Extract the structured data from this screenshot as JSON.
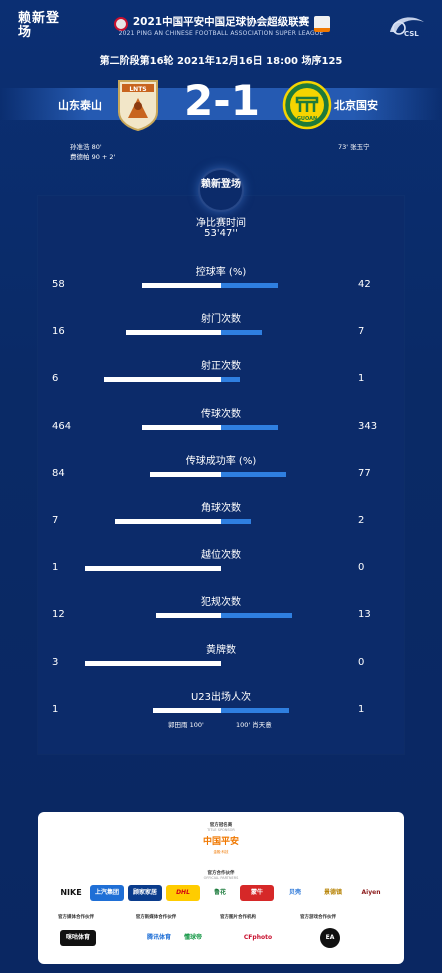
{
  "header": {
    "brand": "赖新登场",
    "league_title": "2021中国平安中国足球协会超级联赛",
    "league_subtitle": "2021 PING AN CHINESE FOOTBALL ASSOCIATION SUPER LEAGUE",
    "csl_logo_text": "CSL",
    "round_info": "第二阶段第16轮  2021年12月16日 18:00 场序125"
  },
  "match": {
    "home_team": "山东泰山",
    "away_team": "北京国安",
    "home_crest_text": "LNTS",
    "away_crest_text": "GUOAN",
    "score": "2-1",
    "home_goals": [
      {
        "player": "孙准浩",
        "minute": "80'"
      },
      {
        "player": "费德帕",
        "minute": "90 + 2'"
      }
    ],
    "away_goals": [
      {
        "minute": "73'",
        "player": "张玉宁"
      }
    ]
  },
  "stats": {
    "panel_logo": "赖新登场",
    "net_time_label": "净比赛时间",
    "net_time_value": "53'47''",
    "home_color": "#ffffff",
    "away_color": "#2f7fe0",
    "items": [
      {
        "label": "控球率 (%)",
        "home": "58",
        "away": "42",
        "home_ratio": 0.58,
        "away_ratio": 0.42
      },
      {
        "label": "射门次数",
        "home": "16",
        "away": "7",
        "home_ratio": 0.7,
        "away_ratio": 0.3
      },
      {
        "label": "射正次数",
        "home": "6",
        "away": "1",
        "home_ratio": 0.86,
        "away_ratio": 0.14
      },
      {
        "label": "传球次数",
        "home": "464",
        "away": "343",
        "home_ratio": 0.58,
        "away_ratio": 0.42
      },
      {
        "label": "传球成功率 (%)",
        "home": "84",
        "away": "77",
        "home_ratio": 0.52,
        "away_ratio": 0.48
      },
      {
        "label": "角球次数",
        "home": "7",
        "away": "2",
        "home_ratio": 0.78,
        "away_ratio": 0.22
      },
      {
        "label": "越位次数",
        "home": "1",
        "away": "0",
        "home_ratio": 1.0,
        "away_ratio": 0.0
      },
      {
        "label": "犯规次数",
        "home": "12",
        "away": "13",
        "home_ratio": 0.48,
        "away_ratio": 0.52
      },
      {
        "label": "黄牌数",
        "home": "3",
        "away": "0",
        "home_ratio": 1.0,
        "away_ratio": 0.0
      },
      {
        "label": "U23出场人次",
        "home": "1",
        "away": "1",
        "home_ratio": 0.5,
        "away_ratio": 0.5
      }
    ],
    "u23_home_note": "郭田雨  100'",
    "u23_away_note": "100'  肖天意"
  },
  "sponsors": {
    "title_sponsor_head": "官方冠名商",
    "title_sponsor_sub": "TITLE SPONSOR",
    "title_sponsor": "中国平安",
    "title_sponsor_tag": "金融·科技",
    "partners_head": "官方合作伙伴",
    "partners_sub": "OFFICIAL PARTNERS",
    "partners": [
      "NIKE",
      "上汽集团",
      "顾家家居",
      "DHL",
      "鲁花",
      "蒙牛",
      "贝壳",
      "景德镇",
      "Aiyen"
    ],
    "media_head": "官方媒体合作伙伴",
    "new_media_head": "官方新媒体合作伙伴",
    "photo_head": "官方图片合作机构",
    "game_head": "官方游戏合作伙伴",
    "media": [
      "咪咕体育",
      "腾讯体育",
      "懂球帝",
      "CFphoto",
      "EA"
    ]
  }
}
